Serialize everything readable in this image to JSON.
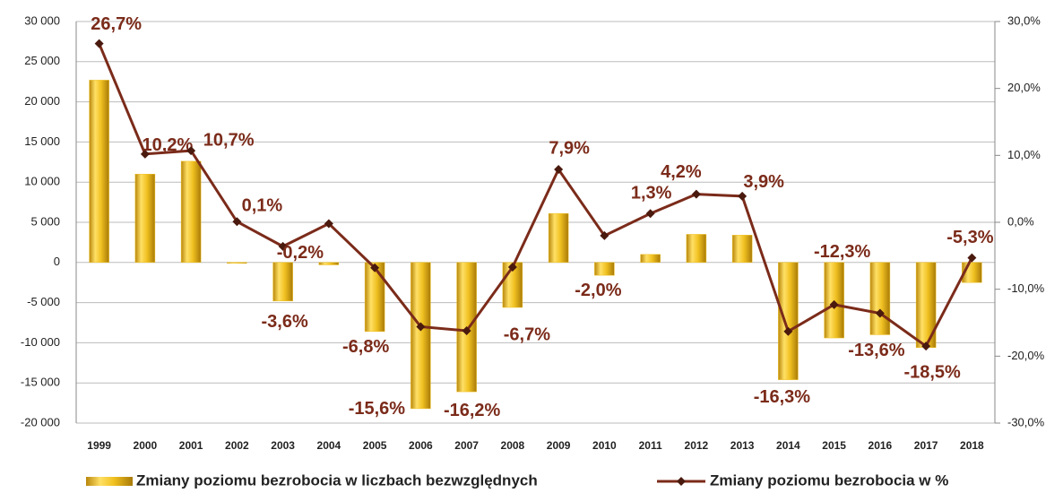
{
  "chart_data": {
    "type": "bar-line",
    "categories": [
      "1999",
      "2000",
      "2001",
      "2002",
      "2003",
      "2004",
      "2005",
      "2006",
      "2007",
      "2008",
      "2009",
      "2010",
      "2011",
      "2012",
      "2013",
      "2014",
      "2015",
      "2016",
      "2017",
      "2018"
    ],
    "series": [
      {
        "name": "Zmiany poziomu bezrobocia w liczbach bezwzględnych",
        "type": "bar",
        "color": "#f0c020",
        "values": [
          22700,
          11000,
          12600,
          -100,
          -4800,
          -300,
          -8600,
          -18200,
          -16100,
          -5600,
          6100,
          -1600,
          1000,
          3500,
          3400,
          -14600,
          -9400,
          -9000,
          -10600,
          -2500
        ]
      },
      {
        "name": "Zmiany poziomu bezrobocia w %",
        "type": "line",
        "axis": "y2",
        "color": "#7b2b1a",
        "values": [
          26.7,
          10.2,
          10.7,
          0.1,
          -3.6,
          -0.2,
          -6.8,
          -15.6,
          -16.2,
          -6.7,
          7.9,
          -2.0,
          1.3,
          4.2,
          3.9,
          -16.3,
          -12.3,
          -13.6,
          -18.5,
          -5.3
        ],
        "value_labels": [
          "26,7%",
          "10,2%",
          "10,7%",
          "0,1%",
          "-3,6%",
          "-0,2%",
          "-6,8%",
          "-15,6%",
          "-16,2%",
          "-6,7%",
          "7,9%",
          "-2,0%",
          "1,3%",
          "4,2%",
          "3,9%",
          "-16,3%",
          "-12,3%",
          "-13,6%",
          "-18,5%",
          "-5,3%"
        ]
      }
    ],
    "ylim": [
      -20000,
      30000
    ],
    "yticks": [
      {
        "value": -20000,
        "label": "-20 000"
      },
      {
        "value": -15000,
        "label": "-15 000"
      },
      {
        "value": -10000,
        "label": "-10 000"
      },
      {
        "value": -5000,
        "label": "-5 000"
      },
      0,
      {
        "value": 5000,
        "label": "5 000"
      },
      {
        "value": 10000,
        "label": "10 000"
      },
      {
        "value": 15000,
        "label": "15 000"
      },
      {
        "value": 20000,
        "label": "20 000"
      },
      {
        "value": 25000,
        "label": "25 000"
      },
      {
        "value": 30000,
        "label": "30 000"
      }
    ],
    "y2lim": [
      -30,
      30
    ],
    "y2ticks": [
      {
        "value": -30,
        "label": "-30,0%"
      },
      {
        "value": -20,
        "label": "-20,0%"
      },
      {
        "value": -10,
        "label": "-10,0%"
      },
      {
        "value": 0,
        "label": "0,0%"
      },
      {
        "value": 10,
        "label": "10,0%"
      },
      {
        "value": 20,
        "label": "20,0%"
      },
      {
        "value": 30,
        "label": "30,0%"
      }
    ],
    "grid": true,
    "legend": "bottom"
  }
}
